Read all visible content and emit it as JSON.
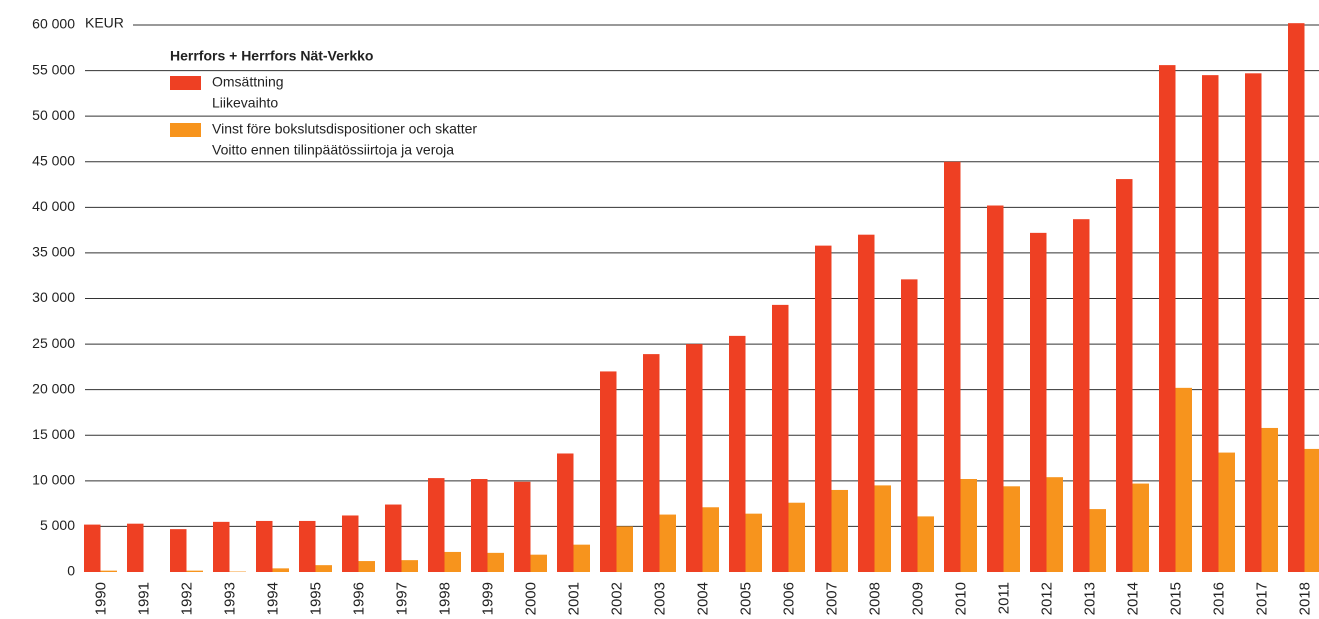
{
  "chart_data": {
    "type": "bar",
    "title": "Herrfors + Herrfors Nät-Verkko",
    "y_label": "KEUR",
    "categories": [
      "1990",
      "1991",
      "1992",
      "1993",
      "1994",
      "1995",
      "1996",
      "1997",
      "1998",
      "1999",
      "2000",
      "2001",
      "2002",
      "2003",
      "2004",
      "2005",
      "2006",
      "2007",
      "2008",
      "2009",
      "2010",
      "2011",
      "2012",
      "2013",
      "2014",
      "2015",
      "2016",
      "2017",
      "2018"
    ],
    "series": [
      {
        "name": [
          "Omsättning",
          "Liikevaihto"
        ],
        "color": "#ee4023",
        "values": [
          5200,
          5300,
          4700,
          5500,
          5600,
          5600,
          6200,
          7400,
          10300,
          10200,
          9900,
          13000,
          22000,
          23900,
          25000,
          25900,
          29300,
          35800,
          37000,
          32100,
          45000,
          40200,
          37200,
          38700,
          43100,
          55600,
          54500,
          54700,
          60200
        ]
      },
      {
        "name": [
          "Vinst före bokslutsdispositioner och skatter",
          "Voitto ennen tilinpäätössiirtoja ja veroja"
        ],
        "color": "#f7941d",
        "values": [
          150,
          0,
          150,
          50,
          400,
          750,
          1200,
          1300,
          2200,
          2100,
          1900,
          3000,
          5000,
          6300,
          7100,
          6400,
          7600,
          9000,
          9500,
          6100,
          10200,
          9400,
          10400,
          6900,
          9700,
          20200,
          13100,
          15800,
          13500
        ]
      }
    ],
    "ylim": [
      0,
      60000
    ],
    "yticks": [
      {
        "value": 0,
        "label": "0"
      },
      {
        "value": 5000,
        "label": "5 000"
      },
      {
        "value": 10000,
        "label": "10 000"
      },
      {
        "value": 15000,
        "label": "15 000"
      },
      {
        "value": 20000,
        "label": "20 000"
      },
      {
        "value": 25000,
        "label": "25 000"
      },
      {
        "value": 30000,
        "label": "30 000"
      },
      {
        "value": 35000,
        "label": "35 000"
      },
      {
        "value": 40000,
        "label": "40 000"
      },
      {
        "value": 45000,
        "label": "45 000"
      },
      {
        "value": 50000,
        "label": "50 000"
      },
      {
        "value": 55000,
        "label": "55 000"
      },
      {
        "value": 60000,
        "label": "60 000"
      }
    ],
    "grid": true
  }
}
